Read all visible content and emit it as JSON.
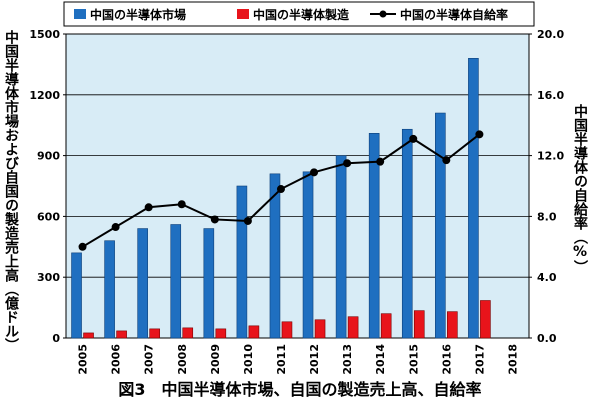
{
  "chart_data": {
    "type": "bar",
    "title": "",
    "caption": "図3　中国半導体市場、自国の製造売上高、自給率",
    "ylabel_left": "中国半導体市場および自国の製造売上高（億ドル）",
    "ylabel_right": "中国半導体の自給率（%）",
    "categories": [
      "2005",
      "2006",
      "2007",
      "2008",
      "2009",
      "2010",
      "2011",
      "2012",
      "2013",
      "2014",
      "2015",
      "2016",
      "2017",
      "2018"
    ],
    "series": [
      {
        "name": "中国の半導体市場",
        "type": "bar",
        "axis": "left",
        "color": "#1f6fc0",
        "values": [
          420,
          480,
          540,
          560,
          540,
          750,
          810,
          820,
          900,
          1010,
          1030,
          1110,
          1380,
          null
        ]
      },
      {
        "name": "中国の半導体製造",
        "type": "bar",
        "axis": "left",
        "color": "#e8141b",
        "values": [
          25,
          35,
          45,
          50,
          45,
          60,
          80,
          90,
          105,
          120,
          135,
          130,
          185,
          null
        ]
      },
      {
        "name": "中国の半導体自給率",
        "type": "line",
        "axis": "right",
        "color": "#000000",
        "values": [
          6.0,
          7.3,
          8.6,
          8.8,
          7.8,
          7.7,
          9.8,
          10.9,
          11.5,
          11.6,
          13.1,
          11.7,
          13.4,
          null
        ]
      }
    ],
    "ylim_left": [
      0,
      1500
    ],
    "yticks_left": [
      "0",
      "300",
      "600",
      "900",
      "1200",
      "1500"
    ],
    "ylim_right": [
      0,
      20
    ],
    "yticks_right": [
      "0.0",
      "4.0",
      "8.0",
      "12.0",
      "16.0",
      "20.0"
    ],
    "grid": true,
    "legend_position": "top"
  }
}
